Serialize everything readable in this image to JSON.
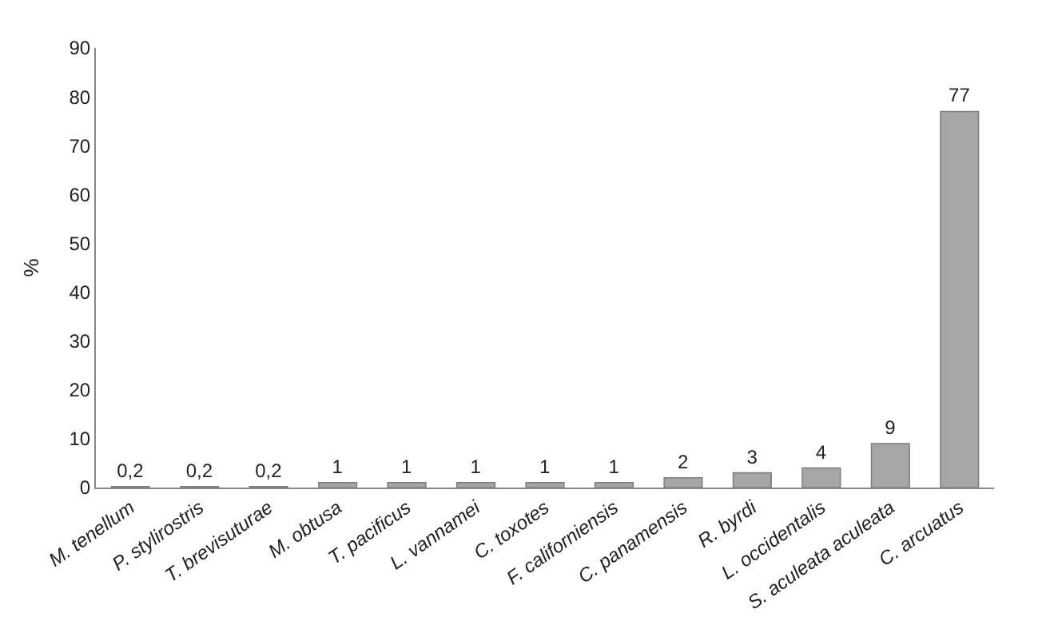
{
  "chart_data": {
    "type": "bar",
    "ylabel": "%",
    "categories": [
      "M. tenellum",
      "P. stylirostris",
      "T. brevisuturae",
      "M. obtusa",
      "T. pacificus",
      "L. vannamei",
      "C. toxotes",
      "F. californiensis",
      "C. panamensis",
      "R. byrdi",
      "L. occidentalis",
      "S. aculeata aculeata",
      "C. arcuatus"
    ],
    "values": [
      0.2,
      0.2,
      0.2,
      1,
      1,
      1,
      1,
      1,
      2,
      3,
      4,
      9,
      77
    ],
    "value_labels": [
      "0,2",
      "0,2",
      "0,2",
      "1",
      "1",
      "1",
      "1",
      "1",
      "2",
      "3",
      "4",
      "9",
      "77"
    ],
    "color": "#a6a6a6",
    "ylim": [
      0,
      90
    ],
    "yticks": [
      0,
      10,
      20,
      30,
      40,
      50,
      60,
      70,
      80,
      90
    ]
  }
}
